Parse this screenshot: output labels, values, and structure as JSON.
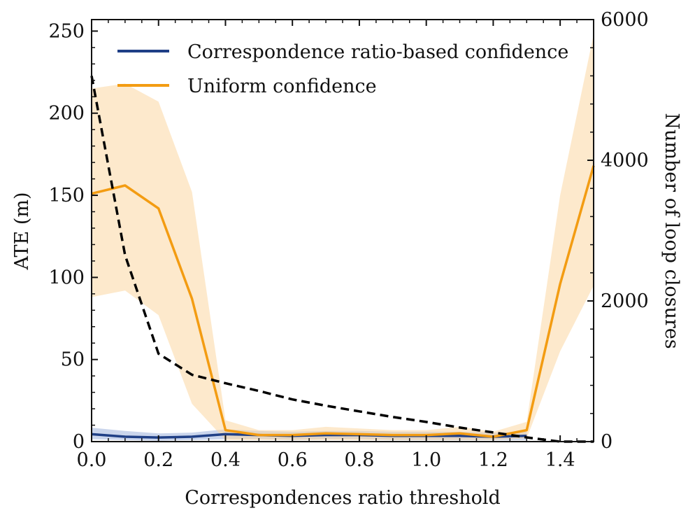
{
  "chart_data": {
    "type": "line",
    "title": "",
    "xlabel": "Correspondences ratio threshold",
    "ylabel": "ATE (m)",
    "ylabel_right": "Number of loop closures",
    "xlim": [
      0,
      1.5
    ],
    "ylim": [
      0,
      257
    ],
    "ylim_right": [
      0,
      6000
    ],
    "x_ticks": [
      0.0,
      0.2,
      0.4,
      0.6,
      0.8,
      1.0,
      1.2,
      1.4
    ],
    "x_tick_labels": [
      "0.0",
      "0.2",
      "0.4",
      "0.6",
      "0.8",
      "1.0",
      "1.2",
      "1.4"
    ],
    "y_ticks": [
      0,
      50,
      100,
      150,
      200,
      250
    ],
    "y_tick_labels": [
      "0",
      "50",
      "100",
      "150",
      "200",
      "250"
    ],
    "y_right_ticks": [
      0,
      2000,
      4000,
      6000
    ],
    "y_right_tick_labels": [
      "0",
      "2000",
      "4000",
      "6000"
    ],
    "legend_position": "top",
    "x": [
      0.0,
      0.1,
      0.2,
      0.3,
      0.4,
      0.5,
      0.6,
      0.7,
      0.8,
      0.9,
      1.0,
      1.1,
      1.2,
      1.3,
      1.4,
      1.5
    ],
    "series": [
      {
        "name": "Correspondence ratio-based confidence",
        "color": "#1f3f86",
        "band_color": "#9fb3dc",
        "axis": "left",
        "values": [
          4.5,
          3.0,
          2.5,
          3.0,
          4.5,
          4.0,
          3.5,
          4.0,
          4.0,
          3.5,
          3.5,
          3.5,
          3.0,
          3.5,
          null,
          null
        ],
        "lower": [
          1.5,
          1.0,
          0.5,
          1.0,
          1.5,
          1.5,
          1.0,
          1.5,
          1.5,
          1.0,
          1.0,
          1.0,
          1.0,
          1.0,
          null,
          null
        ],
        "upper": [
          8.5,
          6.5,
          5.0,
          5.5,
          7.5,
          6.5,
          6.0,
          6.5,
          6.5,
          6.0,
          6.0,
          6.0,
          5.5,
          6.0,
          null,
          null
        ]
      },
      {
        "name": "Uniform confidence",
        "color": "#f39c12",
        "band_color": "#fbd7a2",
        "axis": "left",
        "values": [
          151,
          156,
          142,
          87,
          7,
          4,
          4,
          5,
          4.5,
          4,
          4,
          5,
          3,
          7,
          96,
          168
        ],
        "lower": [
          88,
          92,
          77,
          23,
          1,
          1,
          1,
          1,
          1,
          1,
          1,
          1,
          1,
          2,
          55,
          95
        ],
        "upper": [
          215,
          218,
          207,
          152,
          13,
          7,
          7,
          9,
          8,
          7,
          7,
          9,
          6,
          12,
          150,
          248
        ]
      },
      {
        "name": "Number of loop closures",
        "color": "#000000",
        "axis": "right",
        "style": "dashed",
        "values": [
          5200,
          2650,
          1250,
          950,
          830,
          720,
          600,
          510,
          430,
          350,
          280,
          200,
          130,
          60,
          0,
          0
        ]
      }
    ]
  }
}
